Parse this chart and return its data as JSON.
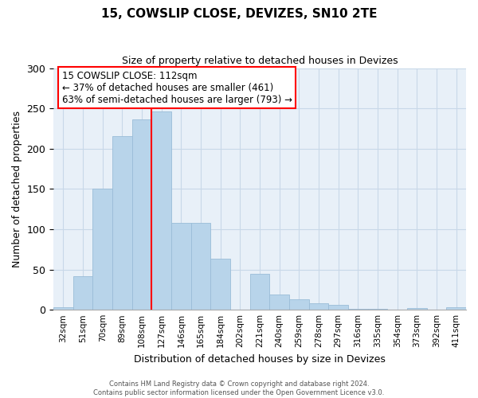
{
  "title": "15, COWSLIP CLOSE, DEVIZES, SN10 2TE",
  "subtitle": "Size of property relative to detached houses in Devizes",
  "xlabel": "Distribution of detached houses by size in Devizes",
  "ylabel": "Number of detached properties",
  "bar_labels": [
    "32sqm",
    "51sqm",
    "70sqm",
    "89sqm",
    "108sqm",
    "127sqm",
    "146sqm",
    "165sqm",
    "184sqm",
    "202sqm",
    "221sqm",
    "240sqm",
    "259sqm",
    "278sqm",
    "297sqm",
    "316sqm",
    "335sqm",
    "354sqm",
    "373sqm",
    "392sqm",
    "411sqm"
  ],
  "bar_values": [
    3,
    42,
    150,
    216,
    236,
    246,
    108,
    108,
    63,
    0,
    45,
    19,
    13,
    8,
    6,
    1,
    1,
    0,
    2,
    0,
    3
  ],
  "bar_color": "#b8d4ea",
  "bar_edge_color": "#9abcd8",
  "vline_x_idx": 4,
  "vline_color": "red",
  "annotation_line1": "15 COWSLIP CLOSE: 112sqm",
  "annotation_line2": "← 37% of detached houses are smaller (461)",
  "annotation_line3": "63% of semi-detached houses are larger (793) →",
  "annotation_box_color": "white",
  "annotation_box_edge": "red",
  "ylim": [
    0,
    300
  ],
  "yticks": [
    0,
    50,
    100,
    150,
    200,
    250,
    300
  ],
  "footer_line1": "Contains HM Land Registry data © Crown copyright and database right 2024.",
  "footer_line2": "Contains public sector information licensed under the Open Government Licence v3.0.",
  "grid_color": "#c8d8e8",
  "background_color": "#e8f0f8"
}
